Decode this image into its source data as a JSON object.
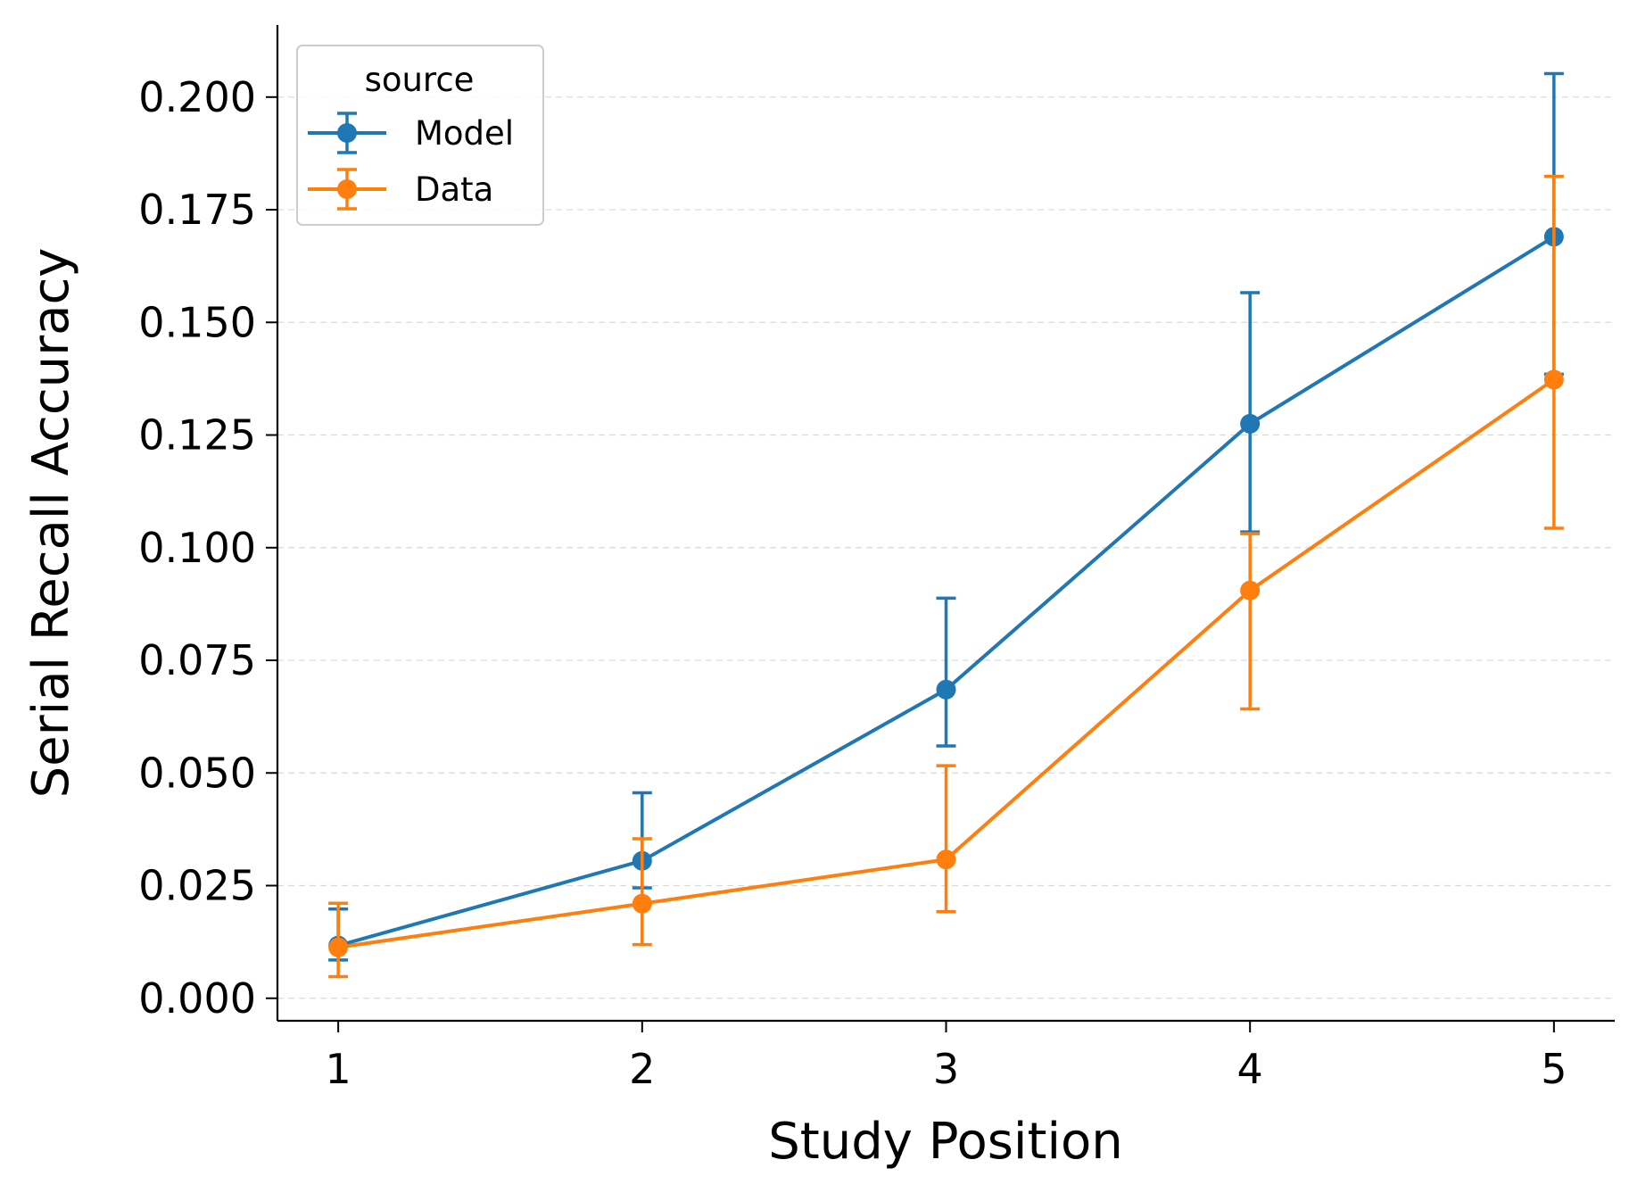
{
  "chart_data": {
    "type": "line",
    "title": "",
    "xlabel": "Study Position",
    "ylabel": "Serial Recall Accuracy",
    "x": [
      1,
      2,
      3,
      4,
      5
    ],
    "xticks": [
      "1",
      "2",
      "3",
      "4",
      "5"
    ],
    "xlim": [
      0.8,
      5.2
    ],
    "ylim": [
      -0.005,
      0.216
    ],
    "yticks": [
      "0.000",
      "0.025",
      "0.050",
      "0.075",
      "0.100",
      "0.125",
      "0.150",
      "0.175",
      "0.200"
    ],
    "ytick_values": [
      0,
      0.025,
      0.05,
      0.075,
      0.1,
      0.125,
      0.15,
      0.175,
      0.2
    ],
    "grid": "y-dashed",
    "legend": {
      "title": "source",
      "placement": "top-left"
    },
    "series": [
      {
        "name": "Model",
        "color": "#1f77b4",
        "values": [
          0.0117,
          0.0305,
          0.0685,
          0.1275,
          0.169
        ],
        "err_low": [
          0.0085,
          0.0245,
          0.056,
          0.1035,
          0.1385
        ],
        "err_high": [
          0.0198,
          0.0456,
          0.0888,
          0.1566,
          0.2052
        ]
      },
      {
        "name": "Data",
        "color": "#ff7f0e",
        "values": [
          0.0113,
          0.021,
          0.0308,
          0.0905,
          0.1373
        ],
        "err_low": [
          0.0048,
          0.0119,
          0.0192,
          0.0642,
          0.1043
        ],
        "err_high": [
          0.0211,
          0.0354,
          0.0516,
          0.1031,
          0.1824
        ]
      }
    ]
  }
}
